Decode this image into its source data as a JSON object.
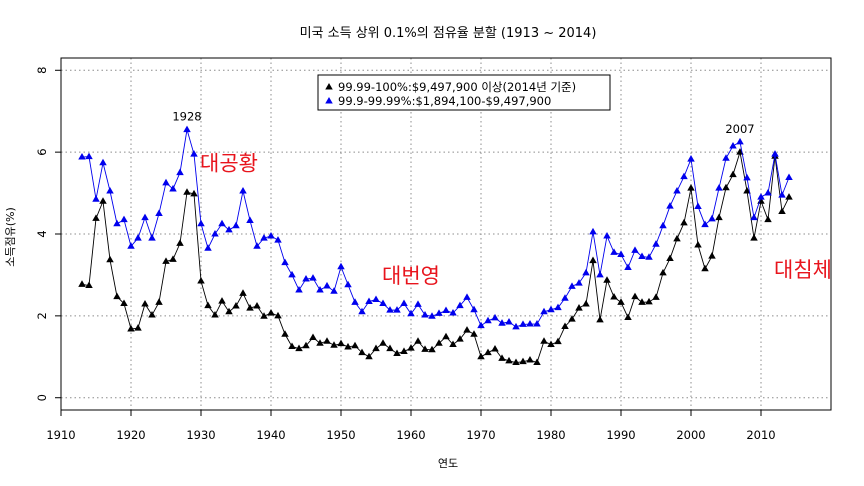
{
  "chart_data": {
    "type": "line",
    "title": "미국 소득 상위 0.1%의 점유율 분할 (1913 ~ 2014)",
    "xlabel": "연도",
    "ylabel": "소득점유(%)",
    "xlim": [
      1910,
      2016
    ],
    "ylim": [
      0,
      8
    ],
    "x_ticks": [
      1910,
      1920,
      1930,
      1940,
      1950,
      1960,
      1970,
      1980,
      1990,
      2000,
      2010
    ],
    "y_ticks": [
      0,
      2,
      4,
      6,
      8
    ],
    "grid": true,
    "legend_position": "top-center",
    "x": [
      1913,
      1914,
      1915,
      1916,
      1917,
      1918,
      1919,
      1920,
      1921,
      1922,
      1923,
      1924,
      1925,
      1926,
      1927,
      1928,
      1929,
      1930,
      1931,
      1932,
      1933,
      1934,
      1935,
      1936,
      1937,
      1938,
      1939,
      1940,
      1941,
      1942,
      1943,
      1944,
      1945,
      1946,
      1947,
      1948,
      1949,
      1950,
      1951,
      1952,
      1953,
      1954,
      1955,
      1956,
      1957,
      1958,
      1959,
      1960,
      1961,
      1962,
      1963,
      1964,
      1965,
      1966,
      1967,
      1968,
      1969,
      1970,
      1971,
      1972,
      1973,
      1974,
      1975,
      1976,
      1977,
      1978,
      1979,
      1980,
      1981,
      1982,
      1983,
      1984,
      1985,
      1986,
      1987,
      1988,
      1989,
      1990,
      1991,
      1992,
      1993,
      1994,
      1995,
      1996,
      1997,
      1998,
      1999,
      2000,
      2001,
      2002,
      2003,
      2004,
      2005,
      2006,
      2007,
      2008,
      2009,
      2010,
      2011,
      2012,
      2013,
      2014
    ],
    "series": [
      {
        "name": "99.99-100%:$9,497,900 이상(2014년 기준)",
        "color": "#000000",
        "values": [
          2.77,
          2.74,
          4.38,
          4.8,
          3.37,
          2.47,
          2.3,
          1.68,
          1.7,
          2.29,
          2.02,
          2.33,
          3.33,
          3.38,
          3.77,
          5.02,
          4.98,
          2.85,
          2.25,
          2.02,
          2.36,
          2.1,
          2.24,
          2.55,
          2.19,
          2.24,
          1.99,
          2.07,
          2.0,
          1.55,
          1.25,
          1.2,
          1.27,
          1.47,
          1.33,
          1.38,
          1.28,
          1.32,
          1.24,
          1.27,
          1.1,
          1.0,
          1.2,
          1.33,
          1.2,
          1.08,
          1.13,
          1.21,
          1.38,
          1.18,
          1.17,
          1.33,
          1.49,
          1.3,
          1.43,
          1.65,
          1.55,
          1.0,
          1.1,
          1.19,
          0.96,
          0.9,
          0.86,
          0.88,
          0.92,
          0.86,
          1.38,
          1.3,
          1.37,
          1.74,
          1.92,
          2.19,
          2.29,
          3.35,
          1.9,
          2.87,
          2.46,
          2.33,
          1.96,
          2.47,
          2.33,
          2.34,
          2.45,
          3.05,
          3.4,
          3.88,
          4.27,
          5.12,
          3.73,
          3.15,
          3.46,
          4.4,
          5.13,
          5.45,
          6.0,
          5.05,
          3.9,
          4.8,
          4.35,
          5.9,
          4.55,
          4.9
        ]
      },
      {
        "name": "99.9-99.99%:$1,894,100-$9,497,900",
        "color": "#0000ee",
        "values": [
          5.88,
          5.89,
          4.85,
          5.74,
          5.05,
          4.25,
          4.35,
          3.7,
          3.9,
          4.4,
          3.9,
          4.5,
          5.25,
          5.1,
          5.5,
          6.55,
          5.95,
          4.25,
          3.65,
          4.0,
          4.25,
          4.1,
          4.2,
          5.05,
          4.33,
          3.7,
          3.9,
          3.95,
          3.85,
          3.3,
          3.0,
          2.63,
          2.9,
          2.92,
          2.63,
          2.73,
          2.6,
          3.2,
          2.76,
          2.33,
          2.1,
          2.35,
          2.4,
          2.3,
          2.14,
          2.14,
          2.3,
          2.05,
          2.28,
          2.02,
          1.99,
          2.06,
          2.13,
          2.07,
          2.25,
          2.45,
          2.15,
          1.76,
          1.88,
          1.95,
          1.82,
          1.85,
          1.73,
          1.79,
          1.8,
          1.8,
          2.1,
          2.15,
          2.2,
          2.43,
          2.72,
          2.8,
          3.05,
          4.05,
          3.0,
          3.95,
          3.55,
          3.5,
          3.18,
          3.6,
          3.45,
          3.43,
          3.75,
          4.2,
          4.68,
          5.05,
          5.4,
          5.83,
          4.67,
          4.23,
          4.37,
          5.12,
          5.85,
          6.15,
          6.25,
          5.37,
          4.4,
          4.9,
          5.0,
          5.95,
          4.95,
          5.38
        ]
      }
    ],
    "annotations": [
      {
        "text": "1928",
        "x": 1928,
        "y": 6.55
      },
      {
        "text": "2007",
        "x": 2007,
        "y": 6.25
      }
    ],
    "period_labels": [
      {
        "text": "대공황",
        "x": 1934,
        "y": 5.55
      },
      {
        "text": "대번영",
        "x": 1960,
        "y": 2.8
      },
      {
        "text": "대침체",
        "x": 2016,
        "y": 2.95
      }
    ]
  }
}
